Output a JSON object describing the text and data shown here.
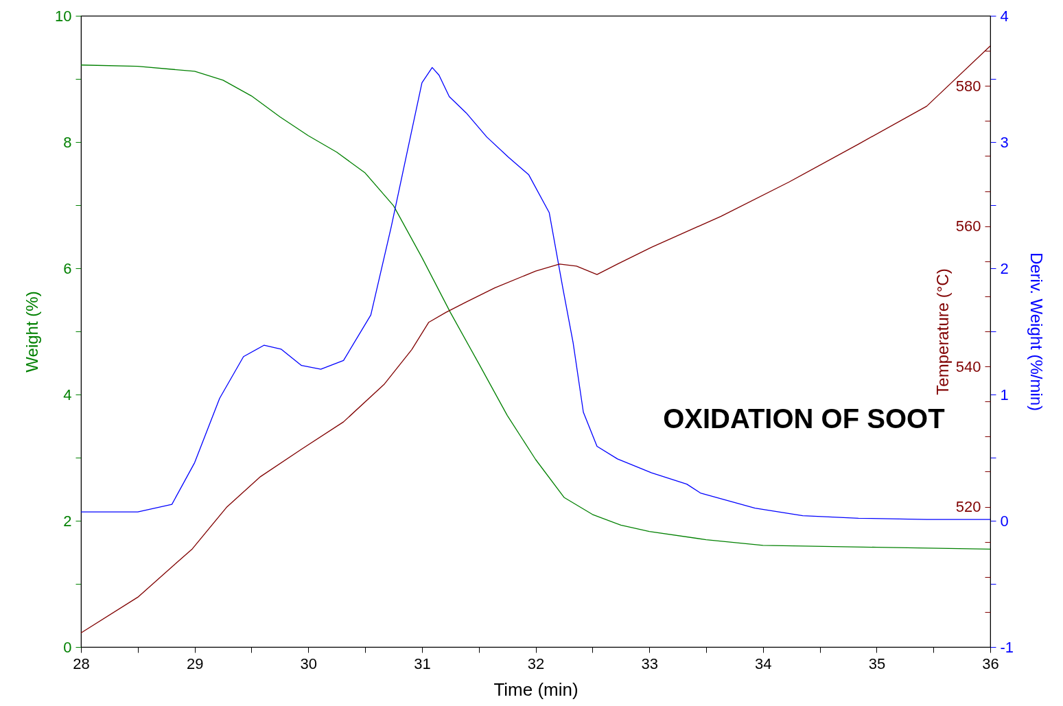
{
  "chart_data": {
    "type": "line",
    "xlabel": "Time (min)",
    "ylabel": "Weight (%)",
    "y2label": "Deriv. Weight (%/min)",
    "y3label": "Temperature (°C)",
    "annotations": [
      "OXIDATION OF SOOT"
    ],
    "xlim": [
      28,
      36
    ],
    "xticks": [
      28,
      {
        "value": 28.5,
        "label": null
      },
      29,
      {
        "value": 29.5,
        "label": null
      },
      30,
      {
        "value": 30.5,
        "label": null
      },
      31,
      {
        "value": 31.5,
        "label": null
      },
      32,
      {
        "value": 32.5,
        "label": null
      },
      33,
      {
        "value": 33.5,
        "label": null
      },
      34,
      {
        "value": 34.5,
        "label": null
      },
      35,
      {
        "value": 35.5,
        "label": null
      },
      36
    ],
    "ylim": [
      0,
      10
    ],
    "yticks": [
      0,
      {
        "value": 1,
        "label": null
      },
      2,
      {
        "value": 3,
        "label": null
      },
      4,
      {
        "value": 5,
        "label": null
      },
      6,
      {
        "value": 7,
        "label": null
      },
      8,
      {
        "value": 9,
        "label": null
      },
      10
    ],
    "y2lim": [
      -1,
      4
    ],
    "y2ticks": [
      -1,
      {
        "value": -0.5,
        "label": null
      },
      0,
      {
        "value": 0.5,
        "label": null
      },
      1,
      {
        "value": 1.5,
        "label": null
      },
      2,
      {
        "value": 2.5,
        "label": null
      },
      3,
      {
        "value": 3.5,
        "label": null
      },
      4
    ],
    "y3lim": [
      500,
      590
    ],
    "y3ticks": [
      {
        "value": 505,
        "label": null
      },
      {
        "value": 510,
        "label": null
      },
      {
        "value": 515,
        "label": null
      },
      520,
      {
        "value": 525,
        "label": null
      },
      {
        "value": 530,
        "label": null
      },
      {
        "value": 535,
        "label": null
      },
      540,
      {
        "value": 545,
        "label": null
      },
      {
        "value": 550,
        "label": null
      },
      {
        "value": 555,
        "label": null
      },
      560,
      {
        "value": 565,
        "label": null
      },
      {
        "value": 570,
        "label": null
      },
      {
        "value": 575,
        "label": null
      },
      580,
      {
        "value": 585,
        "label": null
      }
    ],
    "grid": false,
    "series": [
      {
        "color": "#008000",
        "x": [
          28,
          28.5,
          29,
          29.25,
          29.5,
          29.75,
          30,
          30.25,
          30.5,
          30.75,
          31,
          31.25,
          31.5,
          31.75,
          32,
          32.25,
          32.5,
          32.75,
          33,
          33.5,
          34,
          35,
          36
        ],
        "values": [
          9.22,
          9.2,
          9.12,
          8.98,
          8.73,
          8.4,
          8.1,
          7.84,
          7.51,
          6.99,
          6.17,
          5.3,
          4.49,
          3.67,
          2.97,
          2.37,
          2.1,
          1.93,
          1.83,
          1.7,
          1.61,
          1.58,
          1.55
        ]
      },
      {
        "color": "#0000ff",
        "axis": "y2",
        "x": [
          28,
          28.5,
          28.8,
          29,
          29.22,
          29.43,
          29.61,
          29.76,
          29.94,
          30.11,
          30.31,
          30.55,
          30.73,
          30.91,
          31,
          31.09,
          31.15,
          31.24,
          31.39,
          31.57,
          31.76,
          31.94,
          32.12,
          32.24,
          32.33,
          32.42,
          32.54,
          32.72,
          33.02,
          33.33,
          33.45,
          33.93,
          34.35,
          34.84,
          35.44,
          36
        ],
        "values": [
          0.07,
          0.07,
          0.13,
          0.46,
          0.97,
          1.3,
          1.39,
          1.36,
          1.23,
          1.2,
          1.27,
          1.63,
          2.33,
          3.09,
          3.47,
          3.59,
          3.53,
          3.36,
          3.23,
          3.04,
          2.88,
          2.74,
          2.44,
          1.84,
          1.41,
          0.86,
          0.59,
          0.49,
          0.38,
          0.29,
          0.22,
          0.1,
          0.04,
          0.02,
          0.01,
          0.01
        ]
      },
      {
        "color": "#800000",
        "axis": "y3",
        "x": [
          28,
          28.5,
          28.98,
          29.28,
          29.58,
          29.94,
          30.31,
          30.67,
          30.91,
          31.06,
          31.21,
          31.39,
          31.64,
          32,
          32.21,
          32.36,
          32.54,
          32.72,
          33.02,
          33.63,
          34.23,
          34.84,
          35.44,
          36
        ],
        "values": [
          502,
          507.1,
          514,
          519.9,
          524.3,
          528.2,
          532.1,
          537.5,
          542.4,
          546.3,
          547.7,
          549.2,
          551.2,
          553.6,
          554.6,
          554.3,
          553.1,
          554.6,
          557,
          561.4,
          566.3,
          571.7,
          577.1,
          585.7
        ]
      }
    ]
  }
}
